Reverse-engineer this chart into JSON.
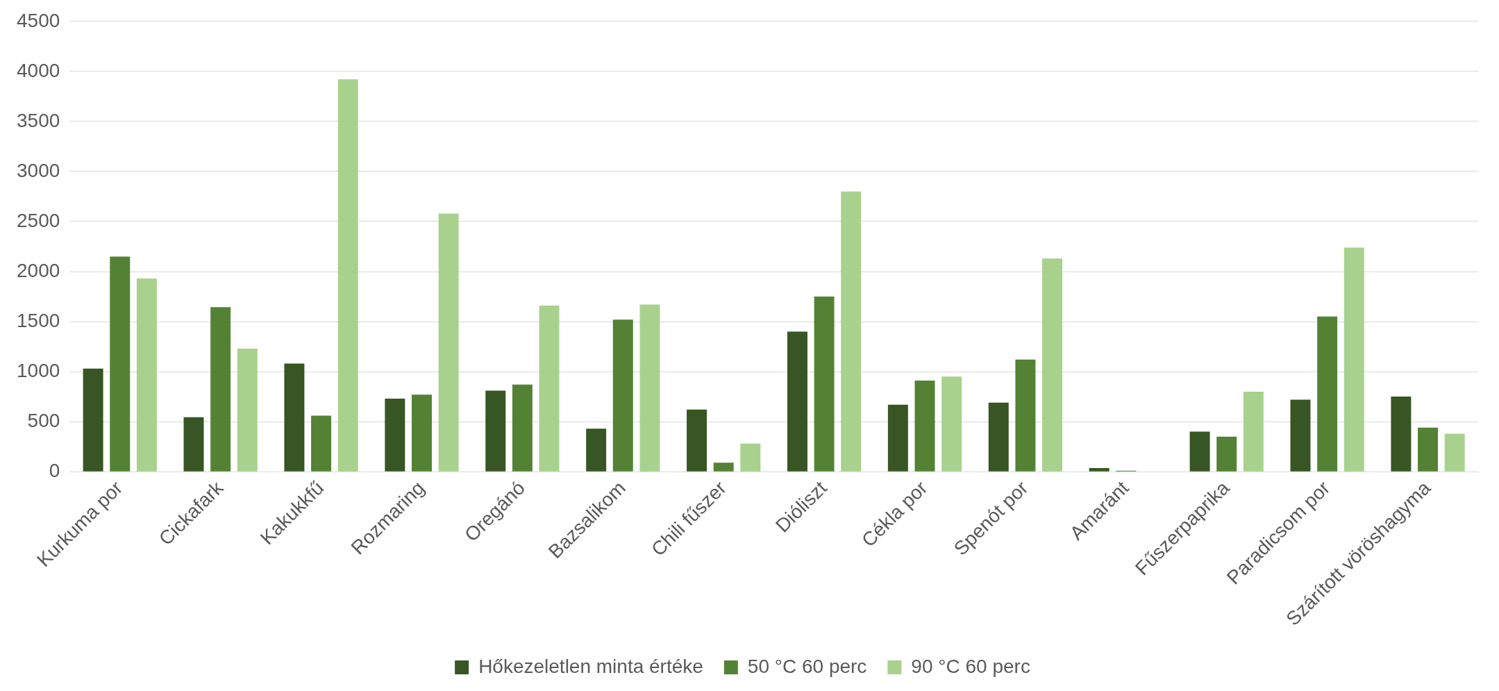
{
  "chart_data": {
    "type": "bar",
    "categories": [
      "Kurkuma por",
      "Cickafark",
      "Kakukkfű",
      "Rozmaring",
      "Oregánó",
      "Bazsalikom",
      "Chili fűszer",
      "Dióliszt",
      "Cékla por",
      "Spenót por",
      "Amaránt",
      "Fűszerpaprika",
      "Paradicsom por",
      "Szárított vöröshagyma"
    ],
    "series": [
      {
        "name": "Hőkezeletlen minta értéke",
        "color": "#375623",
        "values": [
          1030,
          545,
          1080,
          730,
          810,
          430,
          620,
          1400,
          670,
          690,
          35,
          400,
          720,
          750
        ]
      },
      {
        "name": "50 °C 60 perc",
        "color": "#548235",
        "values": [
          2150,
          1645,
          560,
          770,
          870,
          1520,
          90,
          1750,
          910,
          1120,
          10,
          350,
          1550,
          440
        ]
      },
      {
        "name": "90 °C 60 perc",
        "color": "#a9d18e",
        "values": [
          1930,
          1230,
          3920,
          2580,
          1660,
          1670,
          280,
          2800,
          950,
          2130,
          null,
          800,
          2240,
          380
        ]
      }
    ],
    "ylim": [
      0,
      4500
    ],
    "yticks": [
      0,
      500,
      1000,
      1500,
      2000,
      2500,
      3000,
      3500,
      4000,
      4500
    ],
    "grid": "y",
    "legend": "bottom"
  }
}
